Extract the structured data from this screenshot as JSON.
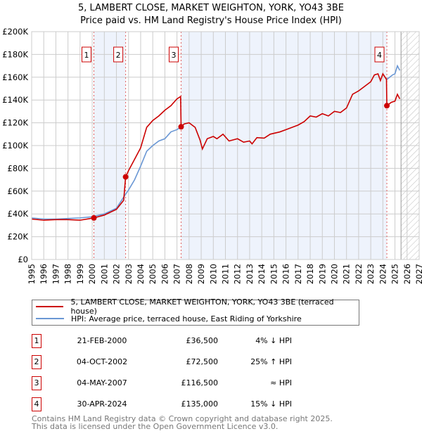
{
  "title": "5, LAMBERT CLOSE, MARKET WEIGHTON, YORK, YO43 3BE",
  "subtitle": "Price paid vs. HM Land Registry's House Price Index (HPI)",
  "colors": {
    "property": "#cc0000",
    "hpi": "#6a97d4",
    "shade": "#eef3fc"
  },
  "chart_data": {
    "type": "line",
    "ylim": [
      0,
      200000
    ],
    "xlim": [
      1995,
      2027
    ],
    "yticks": [
      {
        "v": 0,
        "label": "£0"
      },
      {
        "v": 20000,
        "label": "£20K"
      },
      {
        "v": 40000,
        "label": "£40K"
      },
      {
        "v": 60000,
        "label": "£60K"
      },
      {
        "v": 80000,
        "label": "£80K"
      },
      {
        "v": 100000,
        "label": "£100K"
      },
      {
        "v": 120000,
        "label": "£120K"
      },
      {
        "v": 140000,
        "label": "£140K"
      },
      {
        "v": 160000,
        "label": "£160K"
      },
      {
        "v": 180000,
        "label": "£180K"
      },
      {
        "v": 200000,
        "label": "£200K"
      }
    ],
    "xticks": [
      "1995",
      "1996",
      "1997",
      "1998",
      "1999",
      "2000",
      "2001",
      "2002",
      "2003",
      "2004",
      "2005",
      "2006",
      "2007",
      "2008",
      "2009",
      "2010",
      "2011",
      "2012",
      "2013",
      "2014",
      "2015",
      "2016",
      "2017",
      "2018",
      "2019",
      "2020",
      "2021",
      "2022",
      "2023",
      "2024",
      "2025",
      "2026",
      "2027"
    ],
    "forecast_start": 2025.5,
    "series": [
      {
        "name": "5, LAMBERT CLOSE, MARKET WEIGHTON, YORK, YO43 3BE (terraced house)",
        "color": "#cc0000",
        "points": [
          [
            1995,
            35500
          ],
          [
            1996,
            34500
          ],
          [
            1997,
            35000
          ],
          [
            1998,
            35000
          ],
          [
            1999,
            34500
          ],
          [
            2000.14,
            36500
          ],
          [
            2001,
            39000
          ],
          [
            2002,
            44000
          ],
          [
            2002.6,
            52000
          ],
          [
            2002.76,
            72500
          ],
          [
            2003,
            78000
          ],
          [
            2003.5,
            88000
          ],
          [
            2004,
            98000
          ],
          [
            2004.5,
            116000
          ],
          [
            2005,
            122000
          ],
          [
            2005.5,
            126000
          ],
          [
            2006,
            131000
          ],
          [
            2006.5,
            135000
          ],
          [
            2007,
            141000
          ],
          [
            2007.3,
            143000
          ],
          [
            2007.34,
            116500
          ],
          [
            2007.6,
            119000
          ],
          [
            2008,
            120000
          ],
          [
            2008.5,
            116000
          ],
          [
            2008.9,
            105000
          ],
          [
            2009.1,
            97000
          ],
          [
            2009.5,
            106000
          ],
          [
            2010,
            108000
          ],
          [
            2010.3,
            106000
          ],
          [
            2010.8,
            110000
          ],
          [
            2011.3,
            104000
          ],
          [
            2012,
            106000
          ],
          [
            2012.5,
            103000
          ],
          [
            2013,
            104000
          ],
          [
            2013.2,
            101500
          ],
          [
            2013.6,
            107000
          ],
          [
            2014.2,
            106500
          ],
          [
            2014.7,
            110000
          ],
          [
            2015.5,
            112000
          ],
          [
            2016,
            114000
          ],
          [
            2016.5,
            116000
          ],
          [
            2017,
            118000
          ],
          [
            2017.5,
            121000
          ],
          [
            2018,
            126000
          ],
          [
            2018.5,
            125000
          ],
          [
            2019,
            128000
          ],
          [
            2019.5,
            126000
          ],
          [
            2020,
            130000
          ],
          [
            2020.5,
            129000
          ],
          [
            2021,
            133000
          ],
          [
            2021.5,
            145000
          ],
          [
            2022,
            148000
          ],
          [
            2022.5,
            152000
          ],
          [
            2023,
            156000
          ],
          [
            2023.3,
            162000
          ],
          [
            2023.6,
            163000
          ],
          [
            2023.8,
            157000
          ],
          [
            2024,
            163000
          ],
          [
            2024.3,
            158000
          ],
          [
            2024.33,
            135000
          ],
          [
            2024.7,
            138000
          ],
          [
            2025,
            139000
          ],
          [
            2025.2,
            145000
          ],
          [
            2025.4,
            141000
          ]
        ]
      },
      {
        "name": "HPI: Average price, terraced house, East Riding of Yorkshire",
        "color": "#6a97d4",
        "points": [
          [
            1995,
            36500
          ],
          [
            1996,
            35500
          ],
          [
            1997,
            35500
          ],
          [
            1998,
            36000
          ],
          [
            1999,
            36500
          ],
          [
            2000,
            37500
          ],
          [
            2001,
            40000
          ],
          [
            2002,
            45000
          ],
          [
            2002.8,
            58000
          ],
          [
            2003,
            61000
          ],
          [
            2003.5,
            70000
          ],
          [
            2004,
            82000
          ],
          [
            2004.5,
            95000
          ],
          [
            2005,
            100000
          ],
          [
            2005.5,
            104000
          ],
          [
            2006,
            106000
          ],
          [
            2006.5,
            112000
          ],
          [
            2007,
            114000
          ],
          [
            2007.34,
            116500
          ],
          [
            2024.33,
            158000
          ],
          [
            2024.8,
            162000
          ],
          [
            2025,
            163000
          ],
          [
            2025.2,
            170000
          ],
          [
            2025.4,
            166000
          ]
        ]
      }
    ],
    "sales": [
      {
        "n": "1",
        "x": 2000.14,
        "y": 36500
      },
      {
        "n": "2",
        "x": 2002.76,
        "y": 72500
      },
      {
        "n": "3",
        "x": 2007.34,
        "y": 116500
      },
      {
        "n": "4",
        "x": 2024.33,
        "y": 135000
      }
    ]
  },
  "legend": {
    "property": "5, LAMBERT CLOSE, MARKET WEIGHTON, YORK, YO43 3BE (terraced house)",
    "hpi": "HPI: Average price, terraced house, East Riding of Yorkshire"
  },
  "table": [
    {
      "n": "1",
      "date": "21-FEB-2000",
      "price": "£36,500",
      "rel": "4% ↓ HPI"
    },
    {
      "n": "2",
      "date": "04-OCT-2002",
      "price": "£72,500",
      "rel": "25% ↑ HPI"
    },
    {
      "n": "3",
      "date": "04-MAY-2007",
      "price": "£116,500",
      "rel": "≈ HPI"
    },
    {
      "n": "4",
      "date": "30-APR-2024",
      "price": "£135,000",
      "rel": "15% ↓ HPI"
    }
  ],
  "footer": {
    "line1": "Contains HM Land Registry data © Crown copyright and database right 2025.",
    "line2": "This data is licensed under the Open Government Licence v3.0."
  }
}
